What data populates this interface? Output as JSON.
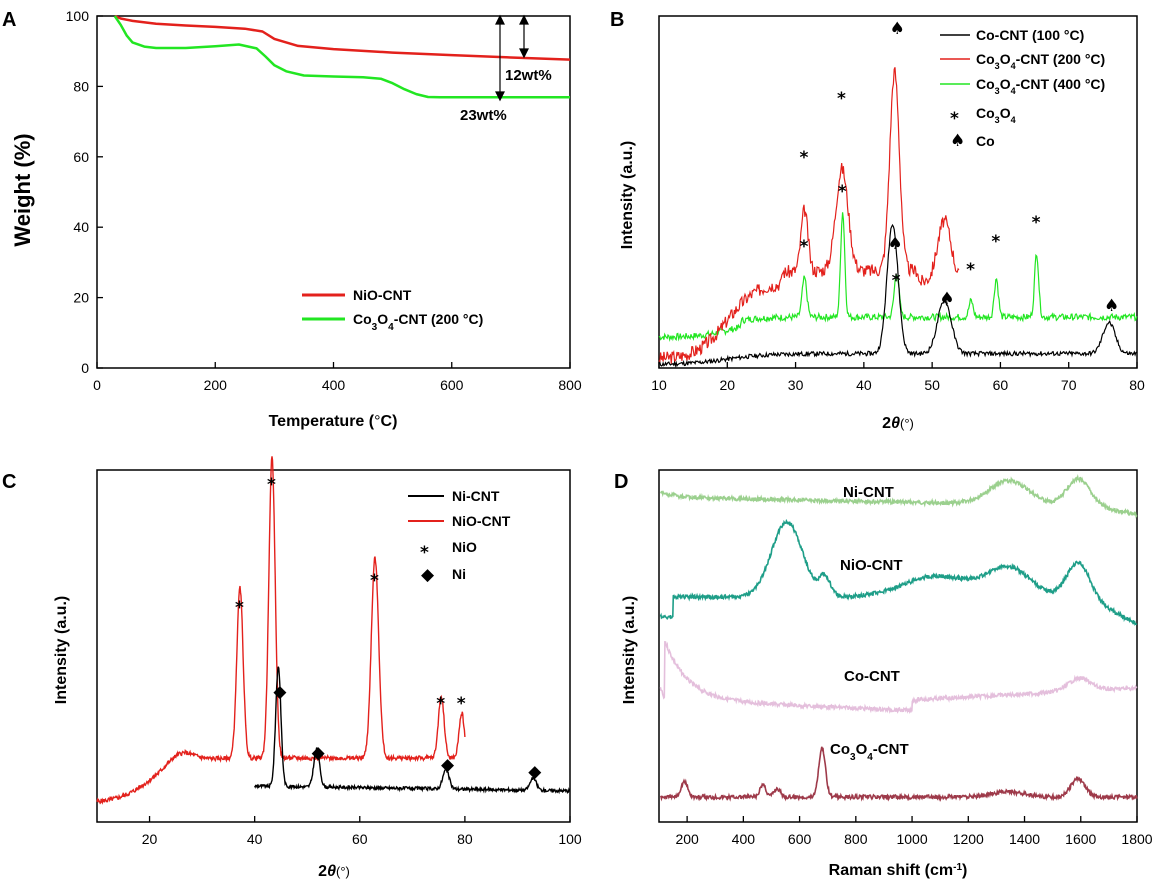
{
  "colors": {
    "red": "#e3211c",
    "green": "#22e622",
    "black": "#000000",
    "ni_cnt_raman": "#9bd08e",
    "nio_cnt_raman": "#1e9e88",
    "co_cnt_raman": "#e4bfdc",
    "co3o4_cnt_raman": "#9e3a4a"
  },
  "chart_data": [
    {
      "panel": "A",
      "type": "line",
      "xlabel_pre": "Temperature (",
      "xlabel_unit": "°",
      "xlabel_post": "C)",
      "ylabel": "Weight (%)",
      "xlim": [
        0,
        800
      ],
      "ylim": [
        0,
        100
      ],
      "xticks": [
        0,
        200,
        400,
        600,
        800
      ],
      "yticks": [
        0,
        20,
        40,
        60,
        80,
        100
      ],
      "legend": [
        "NiO-CNT",
        "Co3O4-CNT (200 °C)"
      ],
      "legend_sub": {
        "base": "Co",
        "sub1": "3",
        "mid": "O",
        "sub2": "4",
        "rest": "-CNT (200 °C)"
      },
      "series": [
        {
          "name": "NiO-CNT",
          "color_key": "red",
          "x": [
            30,
            40,
            60,
            100,
            150,
            200,
            250,
            280,
            300,
            340,
            400,
            500,
            600,
            700,
            800
          ],
          "y": [
            100,
            99.3,
            98.6,
            97.8,
            97.3,
            96.9,
            96.4,
            95.6,
            93.5,
            91.5,
            90.6,
            89.6,
            88.9,
            88.2,
            87.6
          ]
        },
        {
          "name": "Co3O4-CNT (200 °C)",
          "color_key": "green",
          "x": [
            30,
            40,
            50,
            60,
            80,
            100,
            150,
            200,
            240,
            270,
            285,
            300,
            320,
            350,
            400,
            450,
            480,
            500,
            520,
            540,
            560,
            580,
            600,
            700,
            800
          ],
          "y": [
            100,
            97.5,
            94.5,
            92.5,
            91.3,
            90.9,
            90.9,
            91.4,
            91.9,
            90.8,
            88.5,
            86,
            84.3,
            83.1,
            82.8,
            82.6,
            82.2,
            80.9,
            79.2,
            77.8,
            77,
            76.9,
            76.9,
            76.9,
            76.9
          ]
        }
      ],
      "annotations": [
        "12wt%",
        "23wt%"
      ]
    },
    {
      "panel": "B",
      "type": "line",
      "xlabel_main": "2",
      "xlabel_theta": "θ",
      "xlabel_unit": "(°)",
      "ylabel": "Intensity (a.u.)",
      "xlim": [
        10,
        80
      ],
      "xticks": [
        10,
        20,
        30,
        40,
        50,
        60,
        70,
        80
      ],
      "legend": [
        "Co-CNT (100 °C)",
        "Co3O4-CNT (200 °C)",
        "Co3O4-CNT (400 °C)",
        "Co3O4",
        "Co"
      ],
      "legend_items": [
        {
          "plain": "Co-CNT (100 °C)"
        },
        {
          "base": "Co",
          "sub1": "3",
          "mid": "O",
          "sub2": "4",
          "rest": "-CNT (200 °C)"
        },
        {
          "base": "Co",
          "sub1": "3",
          "mid": "O",
          "sub2": "4",
          "rest": "-CNT (400 °C)"
        }
      ],
      "marker_legend": [
        {
          "symbol": "*",
          "base": "Co",
          "sub1": "3",
          "mid": "O",
          "sub2": "4"
        },
        {
          "symbol": "♠",
          "plain": "Co"
        }
      ],
      "series": [
        {
          "name": "Co-CNT (100 °C)",
          "color_key": "black",
          "baseline": 4,
          "peaks": [
            [
              44.2,
              118,
              0.8
            ],
            [
              51.8,
              48,
              1.0
            ],
            [
              75.9,
              28,
              0.9
            ]
          ]
        },
        {
          "name": "Co3O4-CNT (200 °C)",
          "color_key": "red",
          "baseline": 10,
          "peaks": [
            [
              31.3,
              55,
              0.5
            ],
            [
              36.8,
              92,
              0.9
            ],
            [
              44.5,
              180,
              0.7
            ],
            [
              51.8,
              55,
              1.0
            ]
          ]
        },
        {
          "name": "Co3O4-CNT (400 °C)",
          "color_key": "green",
          "baseline": 30,
          "peaks": [
            [
              31.3,
              35,
              0.35
            ],
            [
              36.9,
              95,
              0.3
            ],
            [
              44.8,
              40,
              0.35
            ],
            [
              55.7,
              15,
              0.3
            ],
            [
              59.4,
              35,
              0.3
            ],
            [
              65.3,
              58,
              0.3
            ]
          ]
        }
      ],
      "markers": {
        "co3o4_200": [
          31.3,
          36.8
        ],
        "co_200": [
          44.5
        ],
        "co3o4_400": [
          31.3,
          36.9,
          44.8,
          55.7,
          59.4,
          65.3
        ],
        "co_100": [
          44.2,
          51.8,
          75.9
        ]
      },
      "symbols": {
        "star": "*",
        "spade": "♠",
        "diamond": "◆"
      }
    },
    {
      "panel": "C",
      "type": "line",
      "xlabel_main": "2",
      "xlabel_theta": "θ",
      "xlabel_unit": "(°)",
      "ylabel": "Intensity (a.u.)",
      "xlim": [
        10,
        100
      ],
      "xticks": [
        20,
        40,
        60,
        80,
        100
      ],
      "legend": [
        "Ni-CNT",
        "NiO-CNT",
        "NiO",
        "Ni"
      ],
      "series": [
        {
          "name": "Ni-CNT",
          "color_key": "black",
          "x_start": 40,
          "peaks": [
            [
              44.5,
              120,
              0.5
            ],
            [
              51.8,
              38,
              0.55
            ],
            [
              76.4,
              19,
              0.6
            ],
            [
              93,
              12,
              0.6
            ]
          ]
        },
        {
          "name": "NiO-CNT",
          "color_key": "red",
          "x_start": 10,
          "peaks": [
            [
              37.2,
              170,
              0.6
            ],
            [
              43.3,
              300,
              0.6
            ],
            [
              62.9,
              200,
              0.7
            ],
            [
              75.5,
              62,
              0.55
            ],
            [
              79.4,
              45,
              0.5
            ]
          ]
        }
      ],
      "markers": {
        "nio": [
          37.2,
          43.3,
          62.9,
          75.5,
          79.4
        ],
        "ni": [
          44.5,
          51.8,
          76.4,
          93
        ]
      }
    },
    {
      "panel": "D",
      "type": "line",
      "xlabel": "Raman shift (cm",
      "xlabel_sup": "-1",
      "xlabel_post": ")",
      "ylabel": "Intensity (a.u.)",
      "xlim": [
        100,
        1800
      ],
      "xticks": [
        200,
        400,
        600,
        800,
        1000,
        1200,
        1400,
        1600,
        1800
      ],
      "series": [
        {
          "name": "Ni-CNT",
          "color_key": "ni_cnt_raman",
          "peaks": [
            [
              1345,
              28,
              70
            ],
            [
              1590,
              32,
              40
            ]
          ]
        },
        {
          "name": "NiO-CNT",
          "color_key": "nio_cnt_raman",
          "peaks": [
            [
              555,
              100,
              55
            ],
            [
              690,
              25,
              20
            ],
            [
              1090,
              28,
              120
            ],
            [
              1345,
              38,
              75
            ],
            [
              1590,
              45,
              40
            ]
          ]
        },
        {
          "name": "Co-CNT",
          "color_key": "co_cnt_raman",
          "peaks": [
            [
              1595,
              15,
              40
            ]
          ]
        },
        {
          "name": "Co3O4-CNT",
          "color_key": "co3o4_cnt_raman",
          "peaks": [
            [
              190,
              18,
              12
            ],
            [
              470,
              15,
              10
            ],
            [
              520,
              10,
              12
            ],
            [
              680,
              58,
              12
            ],
            [
              1340,
              6,
              60
            ],
            [
              1590,
              22,
              25
            ]
          ]
        }
      ],
      "labels": [
        {
          "plain": "Ni-CNT"
        },
        {
          "plain": "NiO-CNT"
        },
        {
          "plain": "Co-CNT"
        },
        {
          "base": "Co",
          "sub1": "3",
          "mid": "O",
          "sub2": "4",
          "rest": "-CNT"
        }
      ]
    }
  ]
}
